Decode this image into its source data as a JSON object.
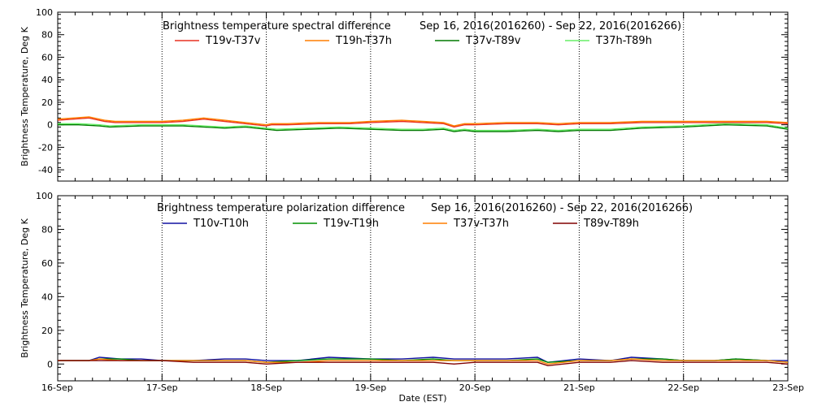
{
  "xlabel": "Date (EST)",
  "x_ticks": [
    "16-Sep",
    "17-Sep",
    "18-Sep",
    "19-Sep",
    "20-Sep",
    "21-Sep",
    "22-Sep",
    "23-Sep"
  ],
  "chart_data": [
    {
      "type": "line",
      "title": "Brightness temperature spectral difference",
      "date_range": "Sep 16, 2016(2016260) - Sep 22, 2016(2016266)",
      "ylabel": "Brightness Temperature, Deg K",
      "ylim": [
        -50,
        100
      ],
      "yticks": [
        -40,
        -20,
        0,
        20,
        40,
        60,
        80,
        100
      ],
      "xlim": [
        0,
        7
      ],
      "legend_placement": "top",
      "series": [
        {
          "name": "T19v-T37v",
          "color": "#e83020",
          "x": [
            0,
            0.15,
            0.3,
            0.45,
            0.55,
            0.8,
            1.0,
            1.2,
            1.4,
            1.6,
            1.8,
            1.9,
            2.0,
            2.05,
            2.2,
            2.5,
            2.8,
            3.0,
            3.3,
            3.5,
            3.7,
            3.8,
            3.9,
            4.0,
            4.3,
            4.6,
            4.8,
            5.0,
            5.3,
            5.6,
            6.0,
            6.4,
            6.8,
            7.0
          ],
          "y": [
            4,
            5,
            6,
            3,
            2,
            2,
            2,
            3,
            5,
            3,
            1,
            0,
            -1,
            0,
            0,
            1,
            1,
            2,
            3,
            2,
            1,
            -2,
            0,
            0,
            1,
            1,
            0,
            1,
            1,
            2,
            2,
            2,
            2,
            1
          ]
        },
        {
          "name": "T19h-T37h",
          "color": "#ff7f00",
          "x": [
            0,
            0.15,
            0.3,
            0.45,
            0.55,
            0.8,
            1.0,
            1.2,
            1.4,
            1.6,
            1.8,
            1.9,
            2.0,
            2.05,
            2.2,
            2.5,
            2.8,
            3.0,
            3.3,
            3.5,
            3.7,
            3.8,
            3.9,
            4.0,
            4.3,
            4.6,
            4.8,
            5.0,
            5.3,
            5.6,
            6.0,
            6.4,
            6.8,
            7.0
          ],
          "y": [
            5,
            6,
            7,
            4,
            3,
            3,
            3,
            4,
            6,
            4,
            2,
            1,
            0,
            1,
            1,
            2,
            2,
            3,
            4,
            3,
            2,
            -1,
            1,
            1,
            2,
            2,
            1,
            2,
            2,
            3,
            3,
            3,
            3,
            2
          ]
        },
        {
          "name": "T37v-T89v",
          "color": "#007800",
          "x": [
            0,
            0.2,
            0.4,
            0.5,
            0.8,
            1.0,
            1.2,
            1.4,
            1.6,
            1.8,
            1.9,
            2.0,
            2.1,
            2.4,
            2.7,
            3.0,
            3.3,
            3.5,
            3.7,
            3.8,
            3.9,
            4.0,
            4.3,
            4.6,
            4.8,
            5.0,
            5.3,
            5.6,
            6.0,
            6.4,
            6.8,
            7.0
          ],
          "y": [
            0,
            0,
            -1,
            -2,
            -1,
            -1,
            -1,
            -2,
            -3,
            -2,
            -3,
            -4,
            -5,
            -4,
            -3,
            -4,
            -5,
            -5,
            -4,
            -6,
            -5,
            -6,
            -6,
            -5,
            -6,
            -5,
            -5,
            -3,
            -2,
            0,
            -1,
            -4
          ]
        },
        {
          "name": "T37h-T89h",
          "color": "#66ee66",
          "x": [
            0,
            0.2,
            0.4,
            0.5,
            0.8,
            1.0,
            1.2,
            1.4,
            1.6,
            1.8,
            1.9,
            2.0,
            2.1,
            2.4,
            2.7,
            3.0,
            3.3,
            3.5,
            3.7,
            3.8,
            3.9,
            4.0,
            4.3,
            4.6,
            4.8,
            5.0,
            5.3,
            5.6,
            6.0,
            6.4,
            6.8,
            7.0
          ],
          "y": [
            1,
            1,
            0,
            -1,
            0,
            0,
            0,
            -1,
            -2,
            -1,
            -2,
            -3,
            -4,
            -3,
            -2,
            -3,
            -4,
            -4,
            -3,
            -5,
            -4,
            -5,
            -5,
            -4,
            -5,
            -4,
            -4,
            -2,
            -1,
            1,
            0,
            -3
          ]
        }
      ]
    },
    {
      "type": "line",
      "title": "Brightness temperature polarization difference",
      "date_range": "Sep 16, 2016(2016260) - Sep 22, 2016(2016266)",
      "ylabel": "Brightness Temperature, Deg K",
      "ylim": [
        -10,
        100
      ],
      "yticks": [
        0,
        20,
        40,
        60,
        80,
        100
      ],
      "xlim": [
        0,
        7
      ],
      "legend_placement": "top",
      "series": [
        {
          "name": "T10v-T10h",
          "color": "#1010a0",
          "x": [
            0,
            0.3,
            0.4,
            0.6,
            0.8,
            1.0,
            1.3,
            1.6,
            1.8,
            2.0,
            2.3,
            2.6,
            3.0,
            3.3,
            3.6,
            3.8,
            4.0,
            4.3,
            4.6,
            4.7,
            5.0,
            5.3,
            5.5,
            5.8,
            6.0,
            6.3,
            6.5,
            6.8,
            7.0
          ],
          "y": [
            2,
            2,
            4,
            3,
            3,
            2,
            2,
            3,
            3,
            2,
            2,
            4,
            3,
            3,
            4,
            3,
            3,
            3,
            4,
            1,
            3,
            2,
            4,
            3,
            2,
            2,
            3,
            2,
            2
          ]
        },
        {
          "name": "T19v-T19h",
          "color": "#009000",
          "x": [
            0,
            0.3,
            0.4,
            0.6,
            0.8,
            1.0,
            1.3,
            1.6,
            1.8,
            2.0,
            2.3,
            2.6,
            3.0,
            3.3,
            3.6,
            3.8,
            4.0,
            4.3,
            4.6,
            4.7,
            5.0,
            5.3,
            5.5,
            5.8,
            6.0,
            6.3,
            6.5,
            6.8,
            7.0
          ],
          "y": [
            2,
            2,
            3,
            3,
            2,
            2,
            2,
            2,
            2,
            1,
            2,
            3,
            3,
            2,
            3,
            2,
            2,
            2,
            3,
            1,
            2,
            2,
            3,
            3,
            2,
            2,
            3,
            2,
            1
          ]
        },
        {
          "name": "T37v-T37h",
          "color": "#ff7f00",
          "x": [
            0,
            0.3,
            0.4,
            0.6,
            0.8,
            1.0,
            1.3,
            1.6,
            1.8,
            2.0,
            2.3,
            2.6,
            3.0,
            3.3,
            3.6,
            3.8,
            4.0,
            4.3,
            4.6,
            4.7,
            5.0,
            5.3,
            5.5,
            5.8,
            6.0,
            6.3,
            6.5,
            6.8,
            7.0
          ],
          "y": [
            2,
            2,
            3,
            2,
            2,
            2,
            2,
            2,
            2,
            1,
            1,
            2,
            2,
            2,
            2,
            2,
            2,
            2,
            2,
            0,
            2,
            2,
            3,
            2,
            2,
            2,
            2,
            2,
            1
          ]
        },
        {
          "name": "T89v-T89h",
          "color": "#800000",
          "x": [
            0,
            0.3,
            0.4,
            0.6,
            0.8,
            1.0,
            1.3,
            1.6,
            1.8,
            2.0,
            2.3,
            2.6,
            3.0,
            3.3,
            3.6,
            3.8,
            4.0,
            4.3,
            4.6,
            4.7,
            5.0,
            5.3,
            5.5,
            5.8,
            6.0,
            6.3,
            6.5,
            6.8,
            7.0
          ],
          "y": [
            2,
            2,
            2,
            2,
            2,
            2,
            1,
            1,
            1,
            0,
            1,
            1,
            1,
            1,
            1,
            0,
            1,
            1,
            1,
            -1,
            1,
            1,
            2,
            1,
            1,
            1,
            1,
            1,
            0
          ]
        }
      ]
    }
  ]
}
